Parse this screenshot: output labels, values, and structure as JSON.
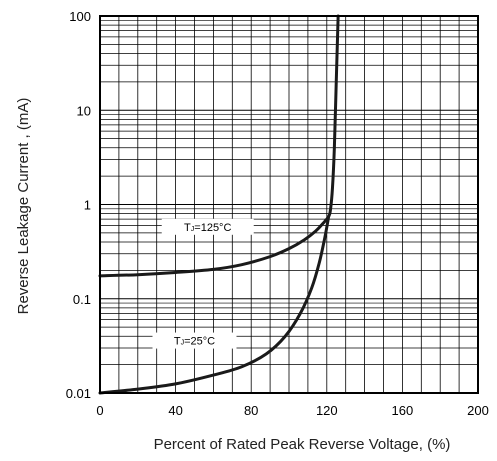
{
  "chart_data": {
    "type": "line",
    "title": "",
    "xlabel": "Percent of Rated Peak Reverse Voltage, (%)",
    "ylabel": "Reverse Leakage Current , (mA)",
    "x_scale": "linear",
    "y_scale": "log",
    "xlim": [
      0,
      200
    ],
    "ylim": [
      0.01,
      100
    ],
    "x_ticks": [
      0,
      40,
      80,
      120,
      160,
      200
    ],
    "x_tick_labels": [
      "0",
      "40",
      "80",
      "120",
      "160",
      "200"
    ],
    "y_ticks": [
      0.01,
      0.1,
      1,
      10,
      100
    ],
    "y_tick_labels": [
      "0.01",
      "0.1",
      "1",
      "10",
      "100"
    ],
    "grid": true,
    "series": [
      {
        "label_prefix": "T",
        "label_sub": "J",
        "label_suffix": "=125°C",
        "x": [
          0,
          20,
          40,
          60,
          75,
          90,
          100,
          108,
          114,
          118,
          121,
          122,
          123,
          124,
          125,
          126
        ],
        "y": [
          0.175,
          0.18,
          0.19,
          0.205,
          0.23,
          0.28,
          0.34,
          0.42,
          0.52,
          0.63,
          0.75,
          0.9,
          1.5,
          4,
          20,
          100
        ]
      },
      {
        "label_prefix": "T",
        "label_sub": "J",
        "label_suffix": "=25°C",
        "x": [
          0,
          20,
          40,
          60,
          75,
          88,
          98,
          106,
          112,
          116,
          119,
          121
        ],
        "y": [
          0.01,
          0.011,
          0.0125,
          0.0155,
          0.019,
          0.026,
          0.04,
          0.07,
          0.13,
          0.24,
          0.45,
          0.75
        ]
      }
    ]
  }
}
